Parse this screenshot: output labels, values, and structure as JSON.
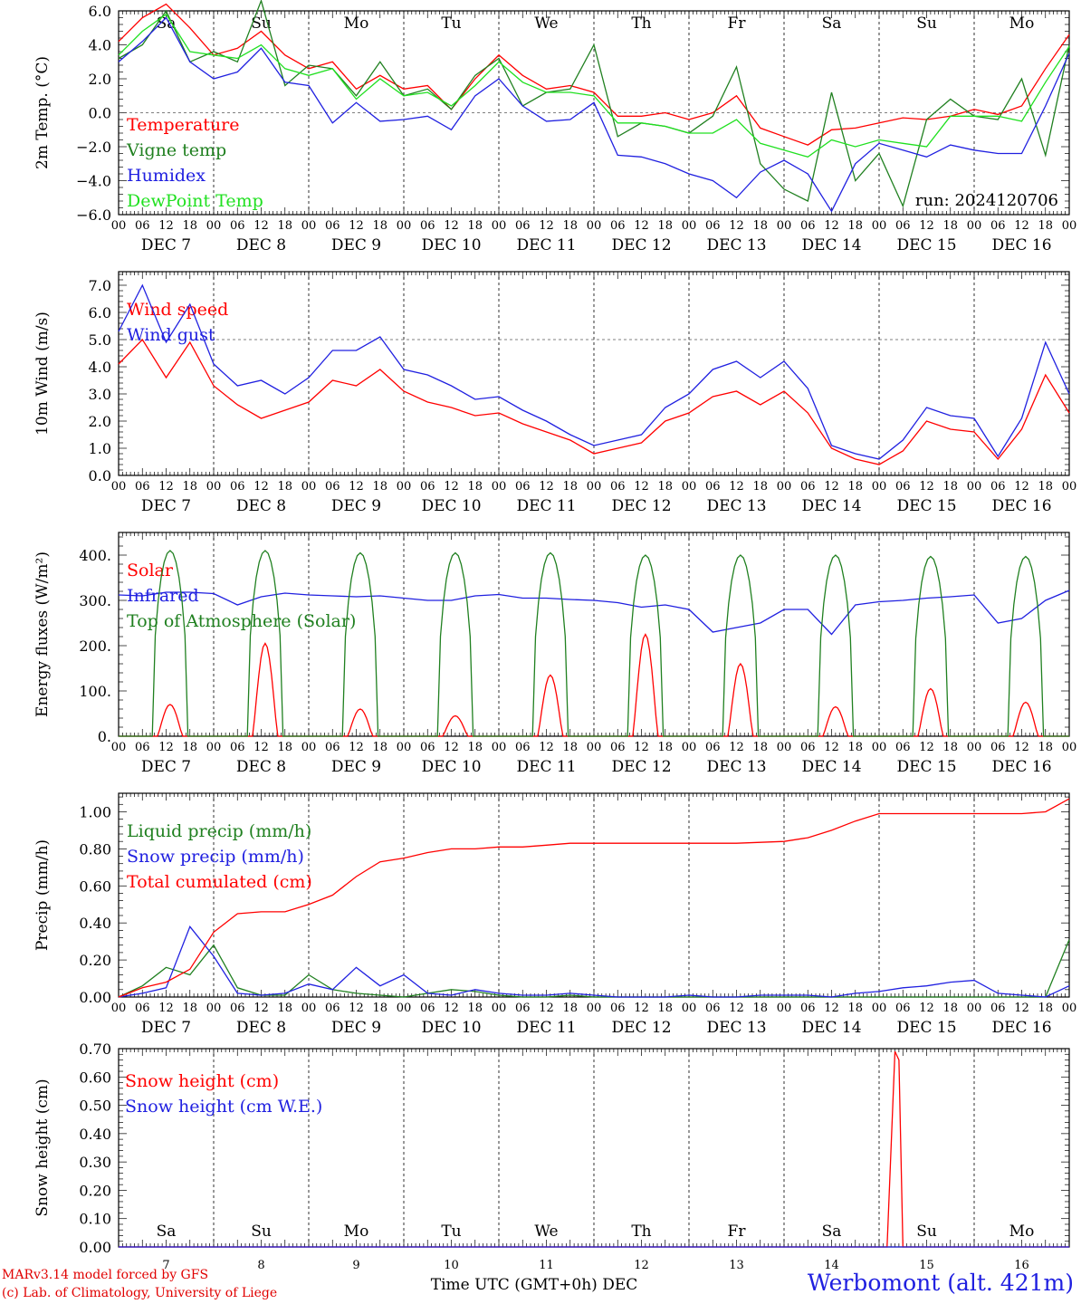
{
  "credits": {
    "model": "MARv3.14 model forced by GFS",
    "lab": "(c) Lab. of Climatology, University of Liege"
  },
  "station": "Werbomont (alt. 421m)",
  "run_label": "run: 2024120706",
  "x_axis_title": "Time UTC (GMT+0h) DEC",
  "hour_ticks": [
    "00",
    "06",
    "12",
    "18"
  ],
  "days": [
    {
      "weekday": "Sa",
      "date": "DEC  7",
      "num": "7",
      "weekend": true
    },
    {
      "weekday": "Su",
      "date": "DEC  8",
      "num": "8",
      "weekend": true
    },
    {
      "weekday": "Mo",
      "date": "DEC  9",
      "num": "9",
      "weekend": false
    },
    {
      "weekday": "Tu",
      "date": "DEC 10",
      "num": "10",
      "weekend": false
    },
    {
      "weekday": "We",
      "date": "DEC 11",
      "num": "11",
      "weekend": false
    },
    {
      "weekday": "Th",
      "date": "DEC 12",
      "num": "12",
      "weekend": false
    },
    {
      "weekday": "Fr",
      "date": "DEC 13",
      "num": "13",
      "weekend": false
    },
    {
      "weekday": "Sa",
      "date": "DEC 14",
      "num": "14",
      "weekend": true
    },
    {
      "weekday": "Su",
      "date": "DEC 15",
      "num": "15",
      "weekend": true
    },
    {
      "weekday": "Mo",
      "date": "DEC 16",
      "num": "16",
      "weekend": false
    }
  ],
  "colors": {
    "red": "#ff0000",
    "green": "#208020",
    "blue": "#2020e0",
    "lightgreen": "#20e020",
    "weekend": "#ff0000",
    "station": "#2020e0"
  },
  "chart_data": [
    {
      "type": "line",
      "ylabel": "2m Temp. (°C)",
      "ylim": [
        -6,
        6
      ],
      "yticks": [
        "6.0",
        "4.0",
        "2.0",
        "0.0",
        "−2.0",
        "−4.0",
        "−6.0"
      ],
      "yticks_values": [
        6,
        4,
        2,
        0,
        -2,
        -4,
        -6
      ],
      "refline": 0,
      "x_hours": [
        0,
        6,
        12,
        18,
        24,
        30,
        36,
        42,
        48,
        54,
        60,
        66,
        72,
        78,
        84,
        90,
        96,
        102,
        108,
        114,
        120,
        126,
        132,
        138,
        144,
        150,
        156,
        162,
        168,
        174,
        180,
        186,
        192,
        198,
        204,
        210,
        216,
        222,
        228,
        234,
        240
      ],
      "series": [
        {
          "name": "Temperature",
          "color": "red",
          "values": [
            4.2,
            5.6,
            6.4,
            5.0,
            3.4,
            3.8,
            4.8,
            3.4,
            2.6,
            3.0,
            1.4,
            2.2,
            1.4,
            1.6,
            0.2,
            2.0,
            3.4,
            2.2,
            1.4,
            1.6,
            1.2,
            -0.2,
            -0.2,
            0.0,
            -0.4,
            0.0,
            1.0,
            -0.9,
            -1.4,
            -1.9,
            -1.0,
            -0.9,
            -0.6,
            -0.3,
            -0.4,
            -0.2,
            0.2,
            -0.1,
            0.4,
            2.6,
            4.6
          ]
        },
        {
          "name": "Vigne temp",
          "color": "green",
          "values": [
            3.2,
            4.0,
            6.0,
            3.0,
            3.6,
            3.0,
            6.6,
            1.6,
            2.8,
            2.6,
            1.0,
            3.0,
            1.0,
            1.4,
            0.2,
            2.2,
            3.2,
            0.4,
            1.2,
            1.4,
            4.0,
            -1.4,
            -0.6,
            -0.8,
            -1.2,
            -0.2,
            2.7,
            -3.0,
            -4.5,
            -5.2,
            1.2,
            -4.0,
            -2.4,
            -5.5,
            -0.4,
            0.8,
            -0.2,
            -0.4,
            2.0,
            -2.5,
            4.0
          ]
        },
        {
          "name": "Humidex",
          "color": "blue",
          "values": [
            3.0,
            4.2,
            5.6,
            3.0,
            2.0,
            2.4,
            3.8,
            1.8,
            1.6,
            -0.6,
            0.6,
            -0.5,
            -0.4,
            -0.2,
            -1.0,
            1.0,
            2.0,
            0.4,
            -0.5,
            -0.4,
            0.6,
            -2.5,
            -2.6,
            -3.0,
            -3.6,
            -4.0,
            -5.0,
            -3.5,
            -2.8,
            -3.6,
            -5.8,
            -3.0,
            -1.8,
            -2.2,
            -2.6,
            -1.9,
            -2.2,
            -2.4,
            -2.4,
            0.4,
            3.5
          ]
        },
        {
          "name": "DewPoint Temp",
          "color": "lightgreen",
          "values": [
            3.4,
            4.8,
            5.8,
            3.6,
            3.4,
            3.2,
            4.0,
            2.6,
            2.2,
            2.6,
            0.8,
            2.0,
            1.0,
            1.2,
            0.4,
            1.6,
            3.0,
            1.8,
            1.2,
            1.2,
            1.0,
            -0.6,
            -0.6,
            -0.8,
            -1.2,
            -1.2,
            -0.4,
            -1.8,
            -2.2,
            -2.6,
            -1.6,
            -2.0,
            -1.6,
            -1.8,
            -2.0,
            -0.2,
            -0.2,
            -0.2,
            -0.5,
            1.8,
            3.9
          ]
        }
      ]
    },
    {
      "type": "line",
      "ylabel": "10m Wind (m/s)",
      "ylim": [
        0,
        7.5
      ],
      "yticks": [
        "7.0",
        "6.0",
        "5.0",
        "4.0",
        "3.0",
        "2.0",
        "1.0",
        "0.0"
      ],
      "yticks_values": [
        7,
        6,
        5,
        4,
        3,
        2,
        1,
        0
      ],
      "refline": 5,
      "x_hours": [
        0,
        6,
        12,
        18,
        24,
        30,
        36,
        42,
        48,
        54,
        60,
        66,
        72,
        78,
        84,
        90,
        96,
        102,
        108,
        114,
        120,
        126,
        132,
        138,
        144,
        150,
        156,
        162,
        168,
        174,
        180,
        186,
        192,
        198,
        204,
        210,
        216,
        222,
        228,
        234,
        240
      ],
      "series": [
        {
          "name": "Wind speed",
          "color": "red",
          "values": [
            4.1,
            5.0,
            3.6,
            4.9,
            3.3,
            2.6,
            2.1,
            2.4,
            2.7,
            3.5,
            3.3,
            3.9,
            3.1,
            2.7,
            2.5,
            2.2,
            2.3,
            1.9,
            1.6,
            1.3,
            0.8,
            1.0,
            1.2,
            2.0,
            2.3,
            2.9,
            3.1,
            2.6,
            3.1,
            2.3,
            1.0,
            0.6,
            0.4,
            0.9,
            2.0,
            1.7,
            1.6,
            0.6,
            1.7,
            3.7,
            2.3
          ]
        },
        {
          "name": "Wind gust",
          "color": "blue",
          "values": [
            5.3,
            7.0,
            4.9,
            6.3,
            4.1,
            3.3,
            3.5,
            3.0,
            3.6,
            4.6,
            4.6,
            5.1,
            3.9,
            3.7,
            3.3,
            2.8,
            2.9,
            2.4,
            2.0,
            1.5,
            1.1,
            1.3,
            1.5,
            2.5,
            3.0,
            3.9,
            4.2,
            3.6,
            4.2,
            3.2,
            1.1,
            0.8,
            0.6,
            1.3,
            2.5,
            2.2,
            2.1,
            0.7,
            2.1,
            4.9,
            3.0
          ]
        }
      ]
    },
    {
      "type": "line",
      "ylabel": "Energy fluxes (W/m²)",
      "ylim": [
        0,
        450
      ],
      "yticks": [
        "400.",
        "300.",
        "200.",
        "100.",
        "0."
      ],
      "yticks_values": [
        400,
        300,
        200,
        100,
        0
      ],
      "daily_peaks": {
        "toa": [
          410,
          410,
          405,
          405,
          405,
          400,
          400,
          400,
          397,
          397
        ],
        "solar": [
          70,
          205,
          60,
          45,
          135,
          225,
          160,
          65,
          105,
          75
        ],
        "peak_hour": 13
      },
      "x_hours": [
        0,
        6,
        12,
        18,
        24,
        30,
        36,
        42,
        48,
        54,
        60,
        66,
        72,
        78,
        84,
        90,
        96,
        102,
        108,
        114,
        120,
        126,
        132,
        138,
        144,
        150,
        156,
        162,
        168,
        174,
        180,
        186,
        192,
        198,
        204,
        210,
        216,
        222,
        228,
        234,
        240
      ],
      "series": [
        {
          "name": "Solar",
          "color": "red",
          "values": []
        },
        {
          "name": "Infrared",
          "color": "blue",
          "values": [
            312,
            310,
            318,
            318,
            315,
            290,
            308,
            316,
            312,
            310,
            308,
            310,
            305,
            300,
            300,
            310,
            313,
            305,
            305,
            302,
            300,
            295,
            285,
            290,
            280,
            230,
            240,
            250,
            280,
            280,
            225,
            290,
            297,
            300,
            305,
            308,
            312,
            250,
            260,
            300,
            322
          ]
        },
        {
          "name": "Top of Atmosphere (Solar)",
          "color": "green",
          "values": []
        }
      ]
    },
    {
      "type": "line",
      "ylabel": "Precip (mm/h)",
      "ylim": [
        0,
        1.1
      ],
      "yticks": [
        "1.00",
        "0.80",
        "0.60",
        "0.40",
        "0.20",
        "0.00"
      ],
      "yticks_values": [
        1.0,
        0.8,
        0.6,
        0.4,
        0.2,
        0.0
      ],
      "x_hours": [
        0,
        6,
        12,
        18,
        24,
        30,
        36,
        42,
        48,
        54,
        60,
        66,
        72,
        78,
        84,
        90,
        96,
        102,
        108,
        114,
        120,
        126,
        132,
        138,
        144,
        150,
        156,
        162,
        168,
        174,
        180,
        186,
        192,
        198,
        204,
        210,
        216,
        222,
        228,
        234,
        240
      ],
      "series": [
        {
          "name": "Liquid precip (mm/h)",
          "color": "green",
          "values": [
            0.0,
            0.06,
            0.16,
            0.12,
            0.28,
            0.05,
            0.01,
            0.01,
            0.12,
            0.04,
            0.02,
            0.01,
            0.0,
            0.02,
            0.04,
            0.03,
            0.01,
            0.0,
            0.0,
            0.01,
            0.0,
            0.0,
            0.0,
            0.0,
            0.0,
            0.0,
            0.0,
            0.0,
            0.0,
            0.0,
            0.0,
            0.0,
            0.0,
            0.0,
            0.0,
            0.0,
            0.0,
            0.0,
            0.0,
            0.0,
            0.31
          ]
        },
        {
          "name": "Snow precip (mm/h)",
          "color": "blue",
          "values": [
            0.0,
            0.02,
            0.05,
            0.38,
            0.22,
            0.02,
            0.01,
            0.02,
            0.07,
            0.04,
            0.16,
            0.06,
            0.12,
            0.02,
            0.01,
            0.04,
            0.02,
            0.01,
            0.01,
            0.02,
            0.01,
            0.0,
            0.0,
            0.0,
            0.01,
            0.0,
            0.0,
            0.01,
            0.01,
            0.01,
            0.0,
            0.02,
            0.03,
            0.05,
            0.06,
            0.08,
            0.09,
            0.02,
            0.01,
            0.0,
            0.06
          ]
        },
        {
          "name": "Total cumulated (cm)",
          "color": "red",
          "values": [
            0.0,
            0.05,
            0.08,
            0.15,
            0.35,
            0.45,
            0.46,
            0.46,
            0.5,
            0.55,
            0.65,
            0.73,
            0.75,
            0.78,
            0.8,
            0.8,
            0.81,
            0.81,
            0.82,
            0.83,
            0.83,
            0.83,
            0.83,
            0.83,
            0.83,
            0.83,
            0.83,
            0.835,
            0.84,
            0.86,
            0.9,
            0.95,
            0.99,
            0.99,
            0.99,
            0.99,
            0.99,
            0.99,
            0.99,
            1.0,
            1.07
          ]
        }
      ]
    },
    {
      "type": "line",
      "ylabel": "Snow height (cm)",
      "ylim": [
        0,
        0.7
      ],
      "yticks": [
        "0.70",
        "0.60",
        "0.50",
        "0.40",
        "0.30",
        "0.20",
        "0.10",
        "0.00"
      ],
      "yticks_values": [
        0.7,
        0.6,
        0.5,
        0.4,
        0.3,
        0.2,
        0.1,
        0.0
      ],
      "series": [
        {
          "name": "Snow height (cm)",
          "color": "red",
          "x_hours": [
            0,
            194,
            196,
            197,
            198,
            240
          ],
          "values": [
            0,
            0,
            0.69,
            0.66,
            0,
            0
          ]
        },
        {
          "name": "Snow height (cm W.E.)",
          "color": "blue",
          "values": [
            0
          ]
        }
      ]
    }
  ]
}
